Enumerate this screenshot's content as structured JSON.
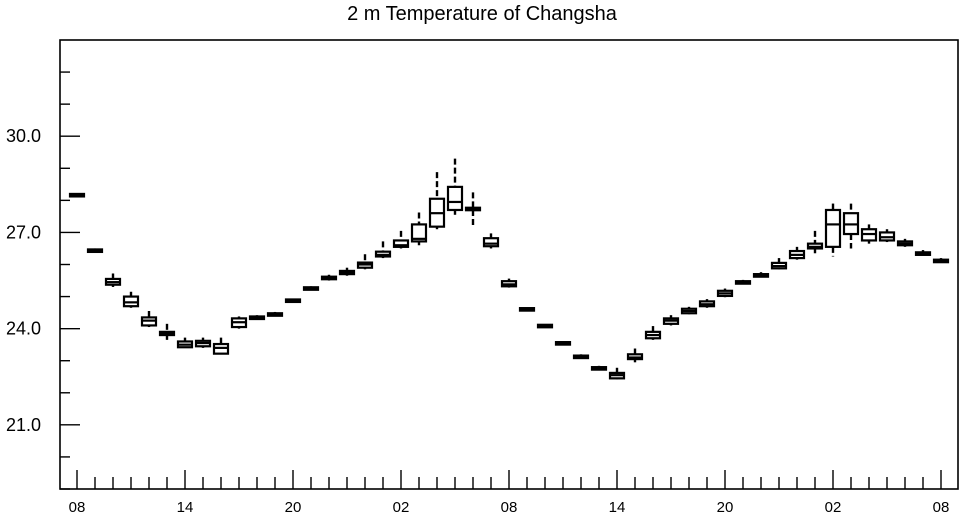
{
  "chart_data": {
    "type": "box",
    "title": "2 m Temperature of Changsha",
    "ylim": [
      19.0,
      33.0
    ],
    "xlim": [
      0,
      48
    ],
    "yticks_labeled": [
      21.0,
      24.0,
      27.0,
      30.0
    ],
    "yticks_labels": [
      "21.0",
      "24.0",
      "27.0",
      "30.0"
    ],
    "yminor_step": 1.0,
    "xticks_labeled": [
      0,
      6,
      12,
      18,
      24,
      30,
      36,
      42,
      48
    ],
    "xticks_labels": [
      "08",
      "14",
      "20",
      "02",
      "08",
      "14",
      "20",
      "02",
      "08"
    ],
    "xminor_step": 1,
    "grid": false,
    "boxes": [
      {
        "x": 0,
        "min": 28.1,
        "q1": 28.13,
        "median": 28.16,
        "q3": 28.2,
        "max": 28.22
      },
      {
        "x": 1,
        "min": 26.4,
        "q1": 26.42,
        "median": 26.44,
        "q3": 26.47,
        "max": 26.5
      },
      {
        "x": 2,
        "min": 25.3,
        "q1": 25.37,
        "median": 25.45,
        "q3": 25.55,
        "max": 25.72
      },
      {
        "x": 3,
        "min": 24.65,
        "q1": 24.7,
        "median": 24.82,
        "q3": 25.0,
        "max": 25.15
      },
      {
        "x": 4,
        "min": 24.05,
        "q1": 24.1,
        "median": 24.25,
        "q3": 24.35,
        "max": 24.55
      },
      {
        "x": 5,
        "min": 23.65,
        "q1": 23.8,
        "median": 23.85,
        "q3": 23.9,
        "max": 24.15
      },
      {
        "x": 6,
        "min": 23.4,
        "q1": 23.42,
        "median": 23.5,
        "q3": 23.6,
        "max": 23.72
      },
      {
        "x": 7,
        "min": 23.4,
        "q1": 23.45,
        "median": 23.55,
        "q3": 23.62,
        "max": 23.72
      },
      {
        "x": 8,
        "min": 23.2,
        "q1": 23.22,
        "median": 23.4,
        "q3": 23.52,
        "max": 23.72
      },
      {
        "x": 9,
        "min": 24.0,
        "q1": 24.05,
        "median": 24.2,
        "q3": 24.32,
        "max": 24.38
      },
      {
        "x": 10,
        "min": 24.28,
        "q1": 24.3,
        "median": 24.34,
        "q3": 24.38,
        "max": 24.42
      },
      {
        "x": 11,
        "min": 24.4,
        "q1": 24.42,
        "median": 24.46,
        "q3": 24.48,
        "max": 24.52
      },
      {
        "x": 12,
        "min": 24.82,
        "q1": 24.84,
        "median": 24.88,
        "q3": 24.91,
        "max": 24.94
      },
      {
        "x": 13,
        "min": 25.2,
        "q1": 25.22,
        "median": 25.26,
        "q3": 25.29,
        "max": 25.32
      },
      {
        "x": 14,
        "min": 25.5,
        "q1": 25.54,
        "median": 25.58,
        "q3": 25.62,
        "max": 25.68
      },
      {
        "x": 15,
        "min": 25.65,
        "q1": 25.7,
        "median": 25.75,
        "q3": 25.8,
        "max": 25.9
      },
      {
        "x": 16,
        "min": 25.85,
        "q1": 25.9,
        "median": 26.0,
        "q3": 26.06,
        "max": 26.32
      },
      {
        "x": 17,
        "min": 26.2,
        "q1": 26.25,
        "median": 26.3,
        "q3": 26.4,
        "max": 26.72
      },
      {
        "x": 18,
        "min": 26.5,
        "q1": 26.55,
        "median": 26.6,
        "q3": 26.75,
        "max": 27.05
      },
      {
        "x": 19,
        "min": 26.6,
        "q1": 26.72,
        "median": 26.8,
        "q3": 27.25,
        "max": 27.62
      },
      {
        "x": 20,
        "min": 27.1,
        "q1": 27.18,
        "median": 27.6,
        "q3": 28.05,
        "max": 28.88
      },
      {
        "x": 21,
        "min": 27.55,
        "q1": 27.7,
        "median": 27.95,
        "q3": 28.42,
        "max": 29.3
      },
      {
        "x": 22,
        "min": 27.2,
        "q1": 27.7,
        "median": 27.73,
        "q3": 27.77,
        "max": 28.25
      },
      {
        "x": 23,
        "min": 26.5,
        "q1": 26.57,
        "median": 26.65,
        "q3": 26.82,
        "max": 26.97
      },
      {
        "x": 24,
        "min": 25.28,
        "q1": 25.32,
        "median": 25.38,
        "q3": 25.48,
        "max": 25.56
      },
      {
        "x": 25,
        "min": 24.56,
        "q1": 24.58,
        "median": 24.61,
        "q3": 24.64,
        "max": 24.66
      },
      {
        "x": 26,
        "min": 24.06,
        "q1": 24.08,
        "median": 24.1,
        "q3": 24.12,
        "max": 24.14
      },
      {
        "x": 27,
        "min": 23.52,
        "q1": 23.54,
        "median": 23.56,
        "q3": 23.58,
        "max": 23.6
      },
      {
        "x": 28,
        "min": 23.08,
        "q1": 23.1,
        "median": 23.13,
        "q3": 23.16,
        "max": 23.2
      },
      {
        "x": 29,
        "min": 22.72,
        "q1": 22.74,
        "median": 22.77,
        "q3": 22.8,
        "max": 22.84
      },
      {
        "x": 30,
        "min": 22.42,
        "q1": 22.45,
        "median": 22.55,
        "q3": 22.62,
        "max": 22.78
      },
      {
        "x": 31,
        "min": 22.95,
        "q1": 23.05,
        "median": 23.1,
        "q3": 23.2,
        "max": 23.38
      },
      {
        "x": 32,
        "min": 23.65,
        "q1": 23.7,
        "median": 23.8,
        "q3": 23.9,
        "max": 24.08
      },
      {
        "x": 33,
        "min": 24.1,
        "q1": 24.15,
        "median": 24.25,
        "q3": 24.32,
        "max": 24.42
      },
      {
        "x": 34,
        "min": 24.45,
        "q1": 24.48,
        "median": 24.55,
        "q3": 24.62,
        "max": 24.68
      },
      {
        "x": 35,
        "min": 24.65,
        "q1": 24.7,
        "median": 24.76,
        "q3": 24.85,
        "max": 24.92
      },
      {
        "x": 36,
        "min": 24.98,
        "q1": 25.02,
        "median": 25.1,
        "q3": 25.18,
        "max": 25.25
      },
      {
        "x": 37,
        "min": 25.4,
        "q1": 25.42,
        "median": 25.45,
        "q3": 25.48,
        "max": 25.52
      },
      {
        "x": 38,
        "min": 25.6,
        "q1": 25.62,
        "median": 25.66,
        "q3": 25.7,
        "max": 25.76
      },
      {
        "x": 39,
        "min": 25.85,
        "q1": 25.88,
        "median": 25.95,
        "q3": 26.05,
        "max": 26.2
      },
      {
        "x": 40,
        "min": 26.15,
        "q1": 26.2,
        "median": 26.3,
        "q3": 26.42,
        "max": 26.55
      },
      {
        "x": 41,
        "min": 26.35,
        "q1": 26.5,
        "median": 26.55,
        "q3": 26.65,
        "max": 27.05
      },
      {
        "x": 42,
        "min": 26.25,
        "q1": 26.55,
        "median": 27.25,
        "q3": 27.7,
        "max": 27.9
      },
      {
        "x": 43,
        "min": 26.5,
        "q1": 26.95,
        "median": 27.25,
        "q3": 27.6,
        "max": 27.9
      },
      {
        "x": 44,
        "min": 26.65,
        "q1": 26.75,
        "median": 26.95,
        "q3": 27.1,
        "max": 27.25
      },
      {
        "x": 45,
        "min": 26.7,
        "q1": 26.75,
        "median": 26.85,
        "q3": 27.0,
        "max": 27.1
      },
      {
        "x": 46,
        "min": 26.55,
        "q1": 26.6,
        "median": 26.65,
        "q3": 26.72,
        "max": 26.8
      },
      {
        "x": 47,
        "min": 26.28,
        "q1": 26.3,
        "median": 26.34,
        "q3": 26.38,
        "max": 26.45
      },
      {
        "x": 48,
        "min": 26.05,
        "q1": 26.08,
        "median": 26.12,
        "q3": 26.15,
        "max": 26.2
      }
    ]
  }
}
